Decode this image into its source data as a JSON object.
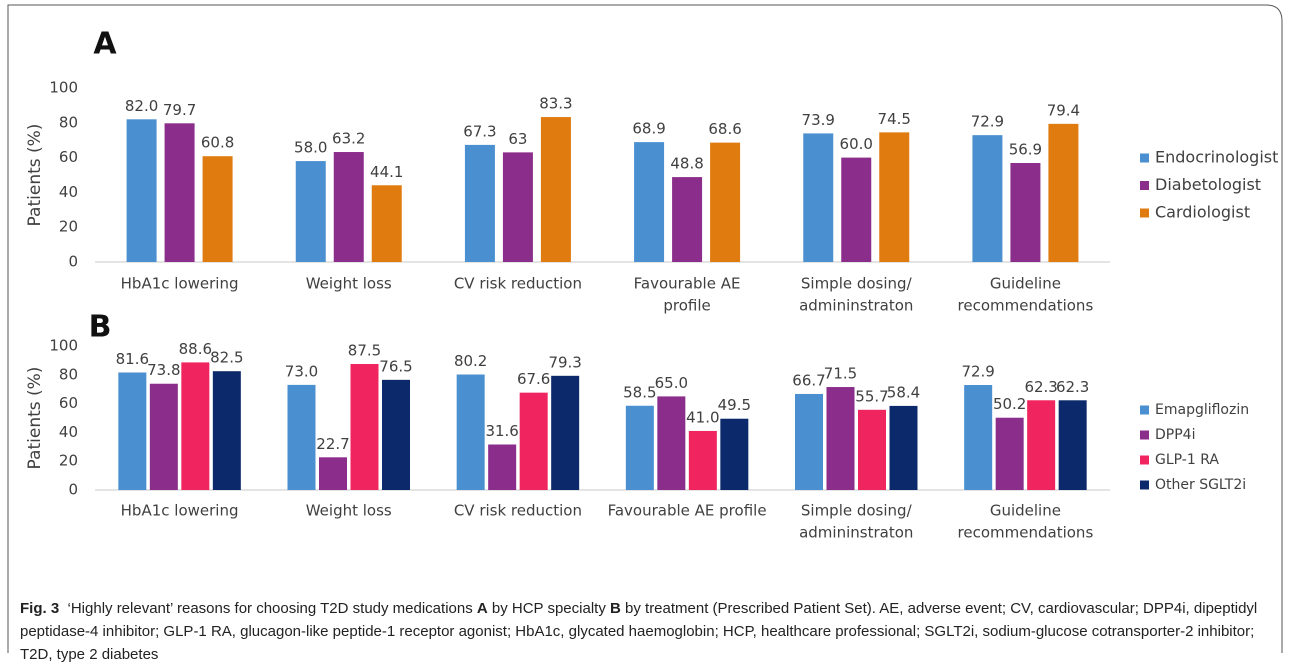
{
  "chart_data": [
    {
      "type": "bar",
      "panel": "A",
      "ylabel": "Patients (%)",
      "categories": [
        "HbA1c lowering",
        "Weight loss",
        "CV risk reduction",
        [
          "Favourable AE",
          "profile"
        ],
        [
          "Simple dosing/",
          "admininstraton"
        ],
        [
          "Guideline",
          "recommendations"
        ]
      ],
      "series": [
        {
          "name": "Endocrinologist",
          "color": "#4a8fd0",
          "values": [
            82.0,
            58.0,
            67.3,
            68.9,
            73.9,
            72.9
          ],
          "value_labels": [
            "82.0",
            "58.0",
            "67.3",
            "68.9",
            "73.9",
            "72.9"
          ]
        },
        {
          "name": "Diabetologist",
          "color": "#8b2d8b",
          "values": [
            79.7,
            63.2,
            63,
            48.8,
            60.0,
            56.9
          ],
          "value_labels": [
            "79.7",
            "63.2",
            "63",
            "48.8",
            "60.0",
            "56.9"
          ]
        },
        {
          "name": "Cardiologist",
          "color": "#e07b10",
          "values": [
            60.8,
            44.1,
            83.3,
            68.6,
            74.5,
            79.4
          ],
          "value_labels": [
            "60.8",
            "44.1",
            "83.3",
            "68.6",
            "74.5",
            "79.4"
          ]
        }
      ],
      "ylim": [
        0,
        100
      ],
      "yticks": [
        0,
        20,
        40,
        60,
        80,
        100
      ],
      "grid": false,
      "legend": "right"
    },
    {
      "type": "bar",
      "panel": "B",
      "ylabel": "Patients (%)",
      "categories": [
        "HbA1c lowering",
        "Weight loss",
        "CV risk reduction",
        "Favourable AE profile",
        [
          "Simple dosing/",
          "admininstraton"
        ],
        [
          "Guideline",
          "recommendations"
        ]
      ],
      "series": [
        {
          "name": "Emapgliflozin",
          "color": "#4a8fd0",
          "values": [
            81.6,
            73.0,
            80.2,
            58.5,
            66.7,
            72.9
          ],
          "value_labels": [
            "81.6",
            "73.0",
            "80.2",
            "58.5",
            "66.7",
            "72.9"
          ]
        },
        {
          "name": "DPP4i",
          "color": "#8b2d8b",
          "values": [
            73.8,
            22.7,
            31.6,
            65.0,
            71.5,
            50.2
          ],
          "value_labels": [
            "73.8",
            "22.7",
            "31.6",
            "65.0",
            "71.5",
            "50.2"
          ]
        },
        {
          "name": "GLP-1 RA",
          "color": "#f0245e",
          "values": [
            88.6,
            87.5,
            67.6,
            41.0,
            55.7,
            62.3
          ],
          "value_labels": [
            "88.6",
            "87.5",
            "67.6",
            "41.0",
            "55.7",
            "62.3"
          ]
        },
        {
          "name": "Other SGLT2i",
          "color": "#0c2a6b",
          "values": [
            82.5,
            76.5,
            79.3,
            49.5,
            58.4,
            62.3
          ],
          "value_labels": [
            "82.5",
            "76.5",
            "79.3",
            "49.5",
            "58.4",
            "62.3"
          ]
        }
      ],
      "ylim": [
        0,
        100
      ],
      "yticks": [
        0,
        20,
        40,
        60,
        80,
        100
      ],
      "grid": false,
      "legend": "right"
    }
  ],
  "caption": [
    {
      "text": "Fig. 3",
      "bold": true
    },
    {
      "text": "  ‘Highly relevant’ reasons for choosing T2D study medications ",
      "bold": false
    },
    {
      "text": "A",
      "bold": true
    },
    {
      "text": " by HCP specialty ",
      "bold": false
    },
    {
      "text": "B",
      "bold": true
    },
    {
      "text": " by treatment (Prescribed Patient Set). AE, adverse event; CV, cardiovascular; DPP4i, dipeptidyl peptidase-4 inhibitor; GLP-1 RA, glucagon-like peptide-1 receptor agonist; HbA1c, glycated haemoglobin; HCP, healthcare professional; SGLT2i, sodium-glucose cotransporter-2 inhibitor; T2D, type 2 diabetes",
      "bold": false
    }
  ]
}
